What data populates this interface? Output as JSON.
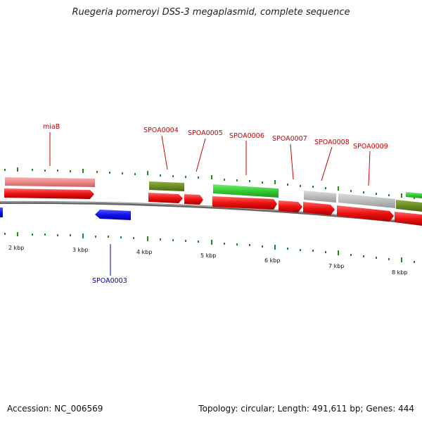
{
  "title": "Ruegeria pomeroyi DSS-3 megaplasmid, complete sequence",
  "footer": {
    "accession": "Accession: NC_006569",
    "summary": "Topology: circular; Length: 491,611 bp; Genes: 444"
  },
  "scale_labels": [
    "2 kbp",
    "3 kbp",
    "4 kbp",
    "5 kbp",
    "6 kbp",
    "7 kbp",
    "8 kbp"
  ],
  "gene_labels": {
    "miaB": "miaB",
    "SPOA0003": "SPOA0003",
    "SPOA0004": "SPOA0004",
    "SPOA0005": "SPOA0005",
    "SPOA0006": "SPOA0006",
    "SPOA0007": "SPOA0007",
    "SPOA0008": "SPOA0008",
    "SPOA0009": "SPOA0009"
  },
  "colors": {
    "forward_cds": "#ee1111",
    "reverse_cds": "#1111ee",
    "backbone": "#888888",
    "tick": "#228822",
    "cog_pink": "#ee8888",
    "cog_olive": "#6b8e23",
    "cog_green": "#33cc33",
    "cog_gray": "#bbbbbb"
  }
}
